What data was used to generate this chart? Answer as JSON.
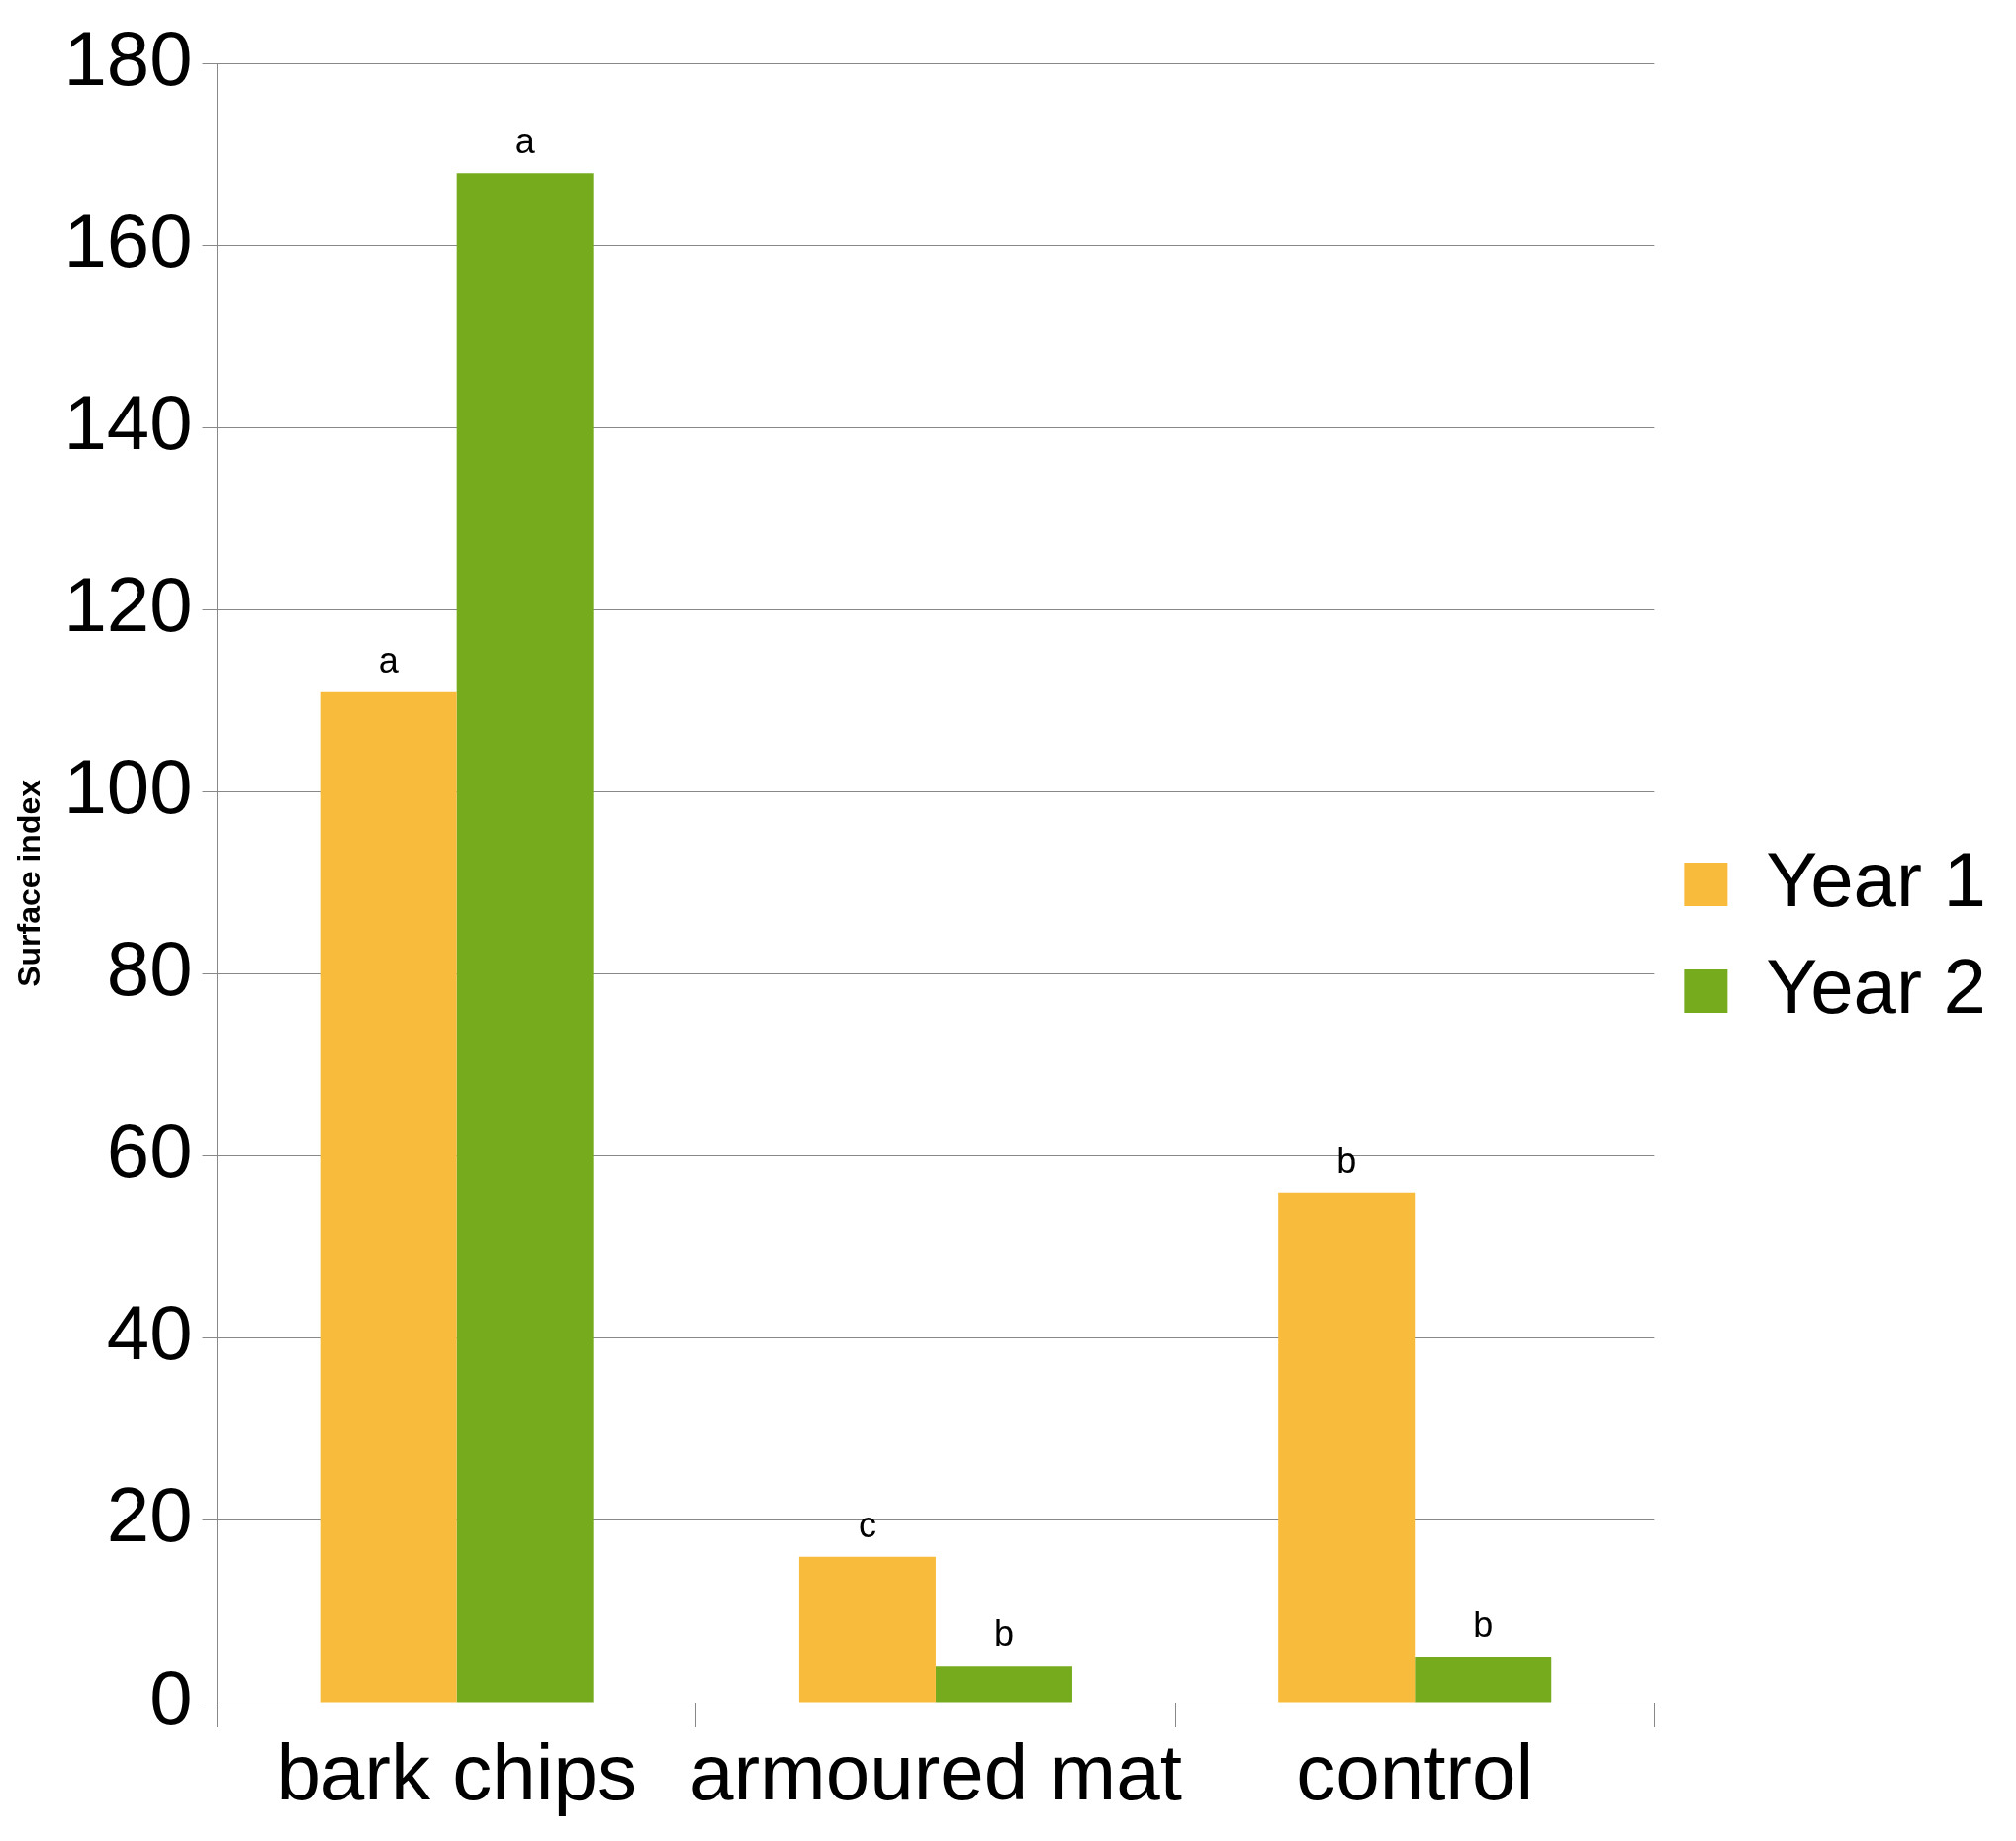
{
  "chart_data": {
    "type": "bar",
    "ylabel": "Surface index",
    "categories": [
      "bark chips",
      "armoured mat",
      "control"
    ],
    "series": [
      {
        "name": "Year 1",
        "color": "#f9bb3b",
        "values": [
          111,
          16,
          56
        ],
        "value_labels": [
          "a",
          "c",
          "b"
        ]
      },
      {
        "name": "Year 2",
        "color": "#76ab1e",
        "values": [
          168,
          4,
          5
        ],
        "value_labels": [
          "a",
          "b",
          "b"
        ]
      }
    ],
    "ylim": [
      0,
      180
    ],
    "yticks": [
      0,
      20,
      40,
      60,
      80,
      100,
      120,
      140,
      160,
      180
    ],
    "grid": "y",
    "legend": "right"
  }
}
